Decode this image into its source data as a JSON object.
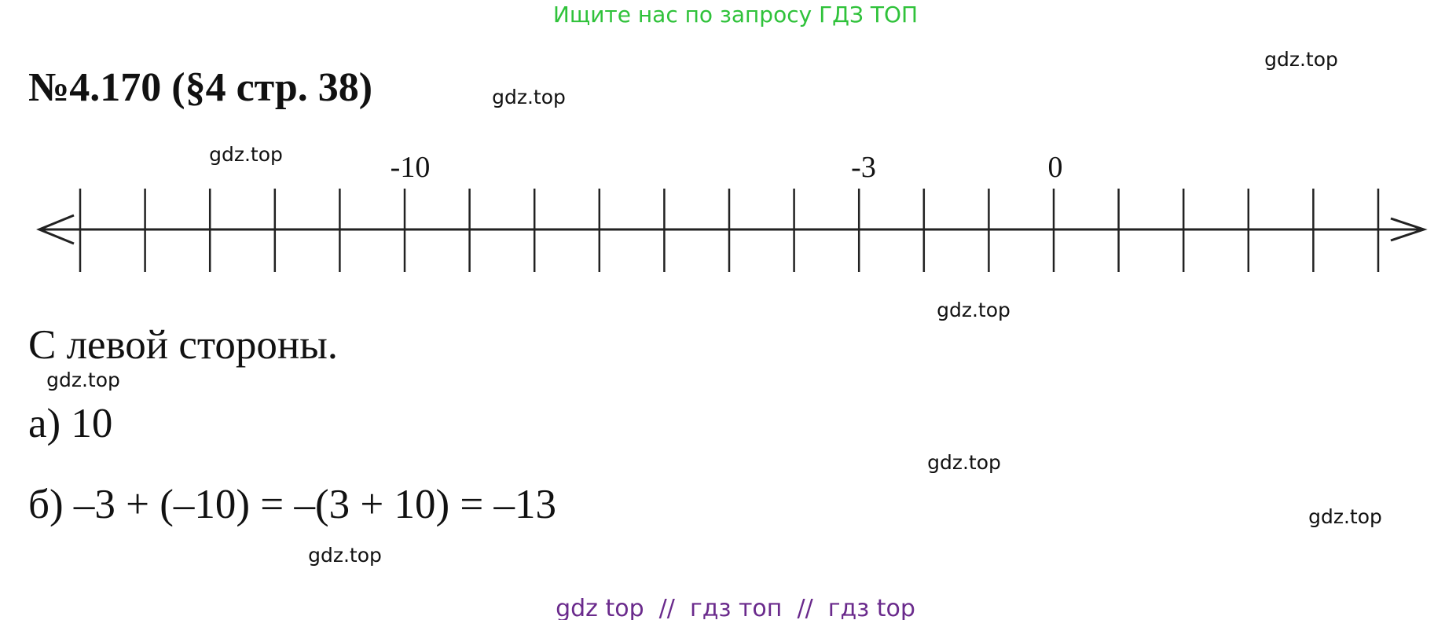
{
  "header": {
    "banner": "Ищите нас по запросу ГДЗ ТОП",
    "title": "№4.170 (§4 стр. 38)"
  },
  "number_line": {
    "labels": [
      "-10",
      "-3",
      "0"
    ]
  },
  "answer": {
    "lines": [
      "С левой стороны.",
      "а) 10",
      "б) –3 + (–10) = –(3 + 10) = –13"
    ]
  },
  "watermarks": [
    "gdz.top",
    "gdz.top",
    "gdz.top",
    "gdz.top",
    "gdz.top",
    "gdz.top",
    "gdz.top",
    "gdz.top"
  ],
  "footer": "gdz top  //  гдз топ  //  гдз top"
}
